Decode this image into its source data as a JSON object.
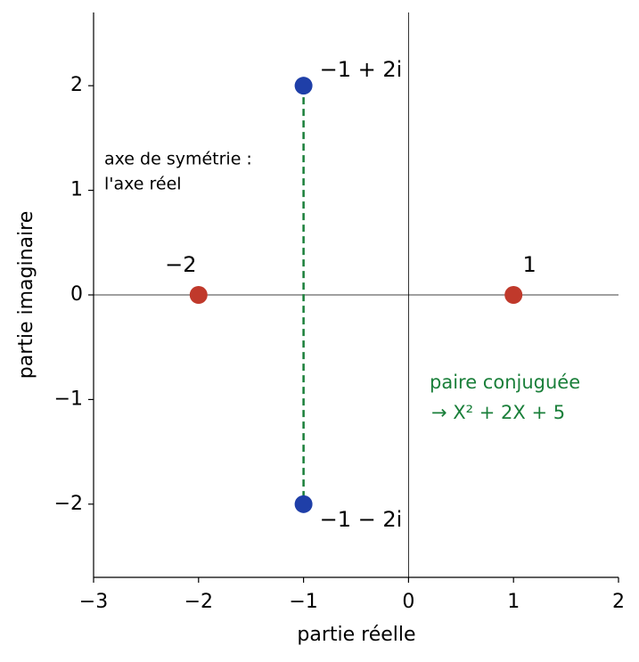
{
  "chart_data": {
    "type": "scatter",
    "xlabel": "partie réelle",
    "ylabel": "partie imaginaire",
    "xlim": [
      -3,
      2
    ],
    "ylim": [
      -2.7,
      2.7
    ],
    "xticks": [
      {
        "value": -3,
        "label": "−3"
      },
      {
        "value": -2,
        "label": "−2"
      },
      {
        "value": -1,
        "label": "−1"
      },
      0,
      1,
      2
    ],
    "yticks": [
      {
        "value": -2,
        "label": "−2"
      },
      {
        "value": -1,
        "label": "−1"
      },
      0,
      1,
      2
    ],
    "series": [
      {
        "color": "#c0392b",
        "x": [
          -2,
          1
        ],
        "values": [
          0,
          0
        ],
        "labels": [
          "−2",
          "1"
        ]
      },
      {
        "color": "#1f3fa8",
        "x": [
          -1,
          -1
        ],
        "values": [
          2,
          -2
        ],
        "labels": [
          "−1 + 2i",
          "−1 − 2i"
        ]
      }
    ],
    "symmetry_color": "#1a7f3a",
    "annotations": [
      {
        "lines": [
          "axe de symétrie :",
          "l'axe réel"
        ],
        "color": "#000000"
      },
      {
        "lines": [
          "paire conjuguée",
          "→ X² + 2X + 5"
        ],
        "color": "#1a7f3a"
      }
    ]
  }
}
